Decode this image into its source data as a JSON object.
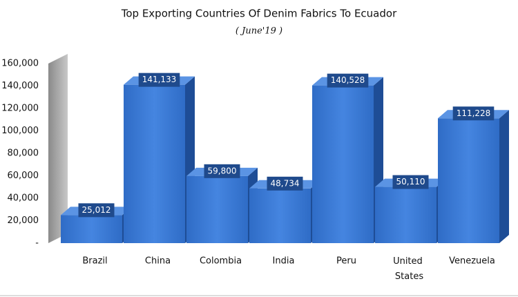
{
  "chart_data": {
    "type": "bar3d",
    "title": "Top Exporting Countries Of Denim Fabrics To Ecuador",
    "subtitle": "( June'19 )",
    "categories": [
      "Brazil",
      "China",
      "Colombia",
      "India",
      "Peru",
      "United States",
      "Venezuela"
    ],
    "values": [
      25012,
      141133,
      59800,
      48734,
      140528,
      50110,
      111228
    ],
    "value_labels": [
      "25,012",
      "141,133",
      "59,800",
      "48,734",
      "140,528",
      "50,110",
      "111,228"
    ],
    "color": "#3a78d4",
    "ylim": [
      0,
      160000
    ],
    "yticks": [
      {
        "value": 0,
        "label": "-"
      },
      {
        "value": 20000,
        "label": "20,000"
      },
      {
        "value": 40000,
        "label": "40,000"
      },
      {
        "value": 60000,
        "label": "60,000"
      },
      {
        "value": 80000,
        "label": "80,000"
      },
      {
        "value": 100000,
        "label": "100,000"
      },
      {
        "value": 120000,
        "label": "120,000"
      },
      {
        "value": 140000,
        "label": "140,000"
      },
      {
        "value": 160000,
        "label": "160,000"
      }
    ]
  }
}
